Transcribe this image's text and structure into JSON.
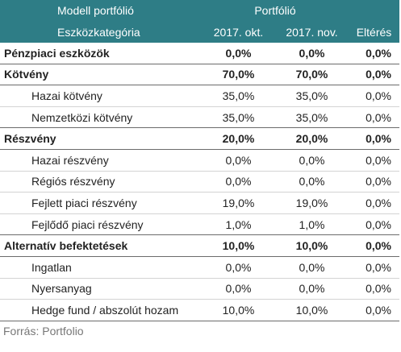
{
  "header": {
    "title": "Modell portfólió",
    "portfolio": "Portfólió",
    "category": "Eszközkategória",
    "col_oct": "2017. okt.",
    "col_nov": "2017. nov.",
    "col_diff": "Eltérés"
  },
  "rows": [
    {
      "name": "Pénzpiaci eszközök",
      "oct": "0,0%",
      "nov": "0,0%",
      "diff": "0,0%"
    },
    {
      "name": "Kötvény",
      "oct": "70,0%",
      "nov": "70,0%",
      "diff": "0,0%"
    },
    {
      "name": "Hazai kötvény",
      "oct": "35,0%",
      "nov": "35,0%",
      "diff": "0,0%"
    },
    {
      "name": "Nemzetközi kötvény",
      "oct": "35,0%",
      "nov": "35,0%",
      "diff": "0,0%"
    },
    {
      "name": "Részvény",
      "oct": "20,0%",
      "nov": "20,0%",
      "diff": "0,0%"
    },
    {
      "name": "Hazai részvény",
      "oct": "0,0%",
      "nov": "0,0%",
      "diff": "0,0%"
    },
    {
      "name": "Régiós részvény",
      "oct": "0,0%",
      "nov": "0,0%",
      "diff": "0,0%"
    },
    {
      "name": "Fejlett piaci részvény",
      "oct": "19,0%",
      "nov": "19,0%",
      "diff": "0,0%"
    },
    {
      "name": "Fejlődő piaci részvény",
      "oct": "1,0%",
      "nov": "1,0%",
      "diff": "0,0%"
    },
    {
      "name": "Alternatív befektetések",
      "oct": "10,0%",
      "nov": "10,0%",
      "diff": "0,0%"
    },
    {
      "name": "Ingatlan",
      "oct": "0,0%",
      "nov": "0,0%",
      "diff": "0,0%"
    },
    {
      "name": "Nyersanyag",
      "oct": "0,0%",
      "nov": "0,0%",
      "diff": "0,0%"
    },
    {
      "name": "Hedge fund / abszolút hozam",
      "oct": "10,0%",
      "nov": "10,0%",
      "diff": "0,0%"
    }
  ],
  "source": "Forrás: Portfolio",
  "colors": {
    "header_bg": "#2e7d86",
    "header_text": "#ffffff"
  }
}
